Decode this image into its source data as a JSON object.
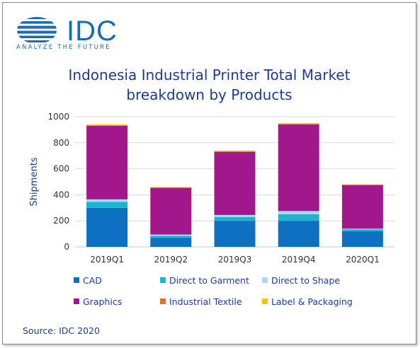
{
  "logo": {
    "name": "IDC",
    "tagline": "ANALYZE THE FUTURE"
  },
  "chart_data": {
    "type": "bar",
    "stacked": true,
    "title_lines": [
      "Indonesia Industrial Printer Total Market",
      "breakdown by Products"
    ],
    "xlabel": "",
    "ylabel": "Shipments",
    "ylim": [
      0,
      1000
    ],
    "yticks": [
      0,
      200,
      400,
      600,
      800,
      1000
    ],
    "grid": true,
    "legend_position": "bottom",
    "categories": [
      "2019Q1",
      "2019Q2",
      "2019Q3",
      "2019Q4",
      "2020Q1"
    ],
    "series": [
      {
        "name": "CAD",
        "color": "#0e70c0",
        "values": [
          300,
          70,
          200,
          200,
          120
        ]
      },
      {
        "name": "Direct to Garment",
        "color": "#1fb3d2",
        "values": [
          45,
          15,
          30,
          50,
          15
        ]
      },
      {
        "name": "Direct to Shape",
        "color": "#a6dcef",
        "values": [
          20,
          10,
          15,
          25,
          5
        ]
      },
      {
        "name": "Graphics",
        "color": "#a3178c",
        "values": [
          565,
          358,
          485,
          665,
          335
        ]
      },
      {
        "name": "Industrial Textile",
        "color": "#e8702a",
        "values": [
          3,
          3,
          3,
          3,
          2
        ]
      },
      {
        "name": "Label & Packaging",
        "color": "#f7c000",
        "values": [
          7,
          4,
          7,
          7,
          3
        ]
      }
    ]
  },
  "source": "Source: IDC 2020"
}
